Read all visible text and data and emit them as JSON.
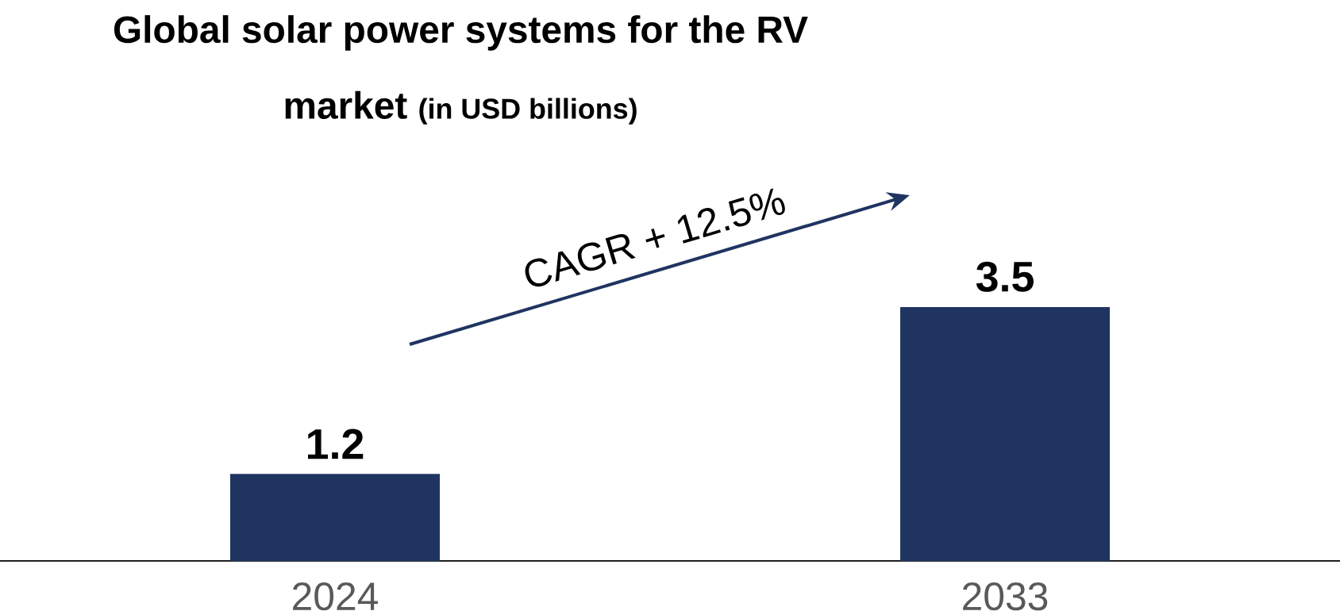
{
  "chart_data": {
    "type": "bar",
    "title": "Global solar power systems for the RV market",
    "subtitle": "(in USD billions)",
    "categories": [
      "2024",
      "2033"
    ],
    "values": [
      1.2,
      3.5
    ],
    "color": "#1f3461",
    "value_labels": [
      "1.2",
      "3.5"
    ],
    "annotations": [
      "CAGR + 12.5%"
    ]
  }
}
